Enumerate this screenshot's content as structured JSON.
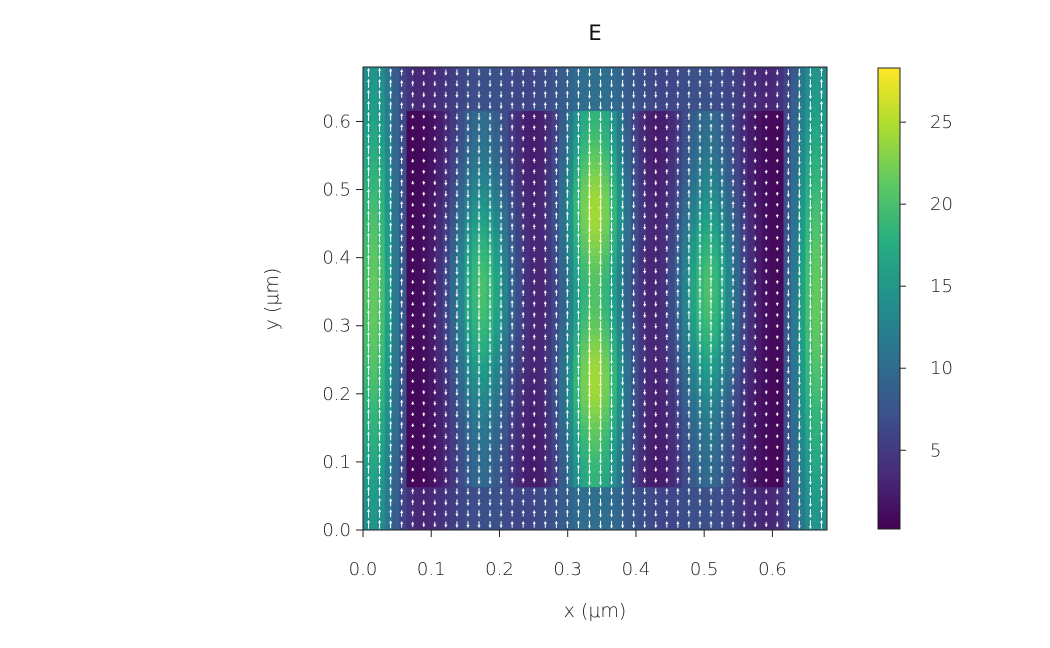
{
  "chart_data": {
    "type": "heatmap",
    "title": "E",
    "xlabel": "x (μm)",
    "ylabel": "y (μm)",
    "xlim": [
      0.0,
      0.68
    ],
    "ylim": [
      0.0,
      0.68
    ],
    "x_ticks": [
      0.0,
      0.1,
      0.2,
      0.3,
      0.4,
      0.5,
      0.6
    ],
    "x_tick_labels": [
      "0.0",
      "0.1",
      "0.2",
      "0.3",
      "0.4",
      "0.5",
      "0.6"
    ],
    "y_ticks": [
      0.0,
      0.1,
      0.2,
      0.3,
      0.4,
      0.5,
      0.6
    ],
    "y_tick_labels": [
      "0.0",
      "0.1",
      "0.2",
      "0.3",
      "0.4",
      "0.5",
      "0.6"
    ],
    "colormap": "viridis",
    "colorbar": {
      "range": [
        0.2,
        28.3
      ],
      "ticks": [
        5,
        10,
        15,
        20,
        25
      ],
      "tick_labels": [
        "5",
        "10",
        "15",
        "20",
        "25"
      ]
    },
    "inner_region": {
      "x": [
        0.065,
        0.615
      ],
      "y": [
        0.068,
        0.612
      ]
    },
    "field_peaks": [
      {
        "x": 0.34,
        "y": 0.47,
        "value": 26.5
      },
      {
        "x": 0.34,
        "y": 0.22,
        "value": 26.5
      },
      {
        "x": 0.175,
        "y": 0.35,
        "value": 21
      },
      {
        "x": 0.505,
        "y": 0.35,
        "value": 21
      },
      {
        "x": 0.015,
        "y": 0.34,
        "value": 21
      },
      {
        "x": 0.665,
        "y": 0.34,
        "value": 21
      }
    ],
    "overlay": "white quiver arrows showing field direction (mostly vertical)",
    "legend": "colorbar right"
  }
}
